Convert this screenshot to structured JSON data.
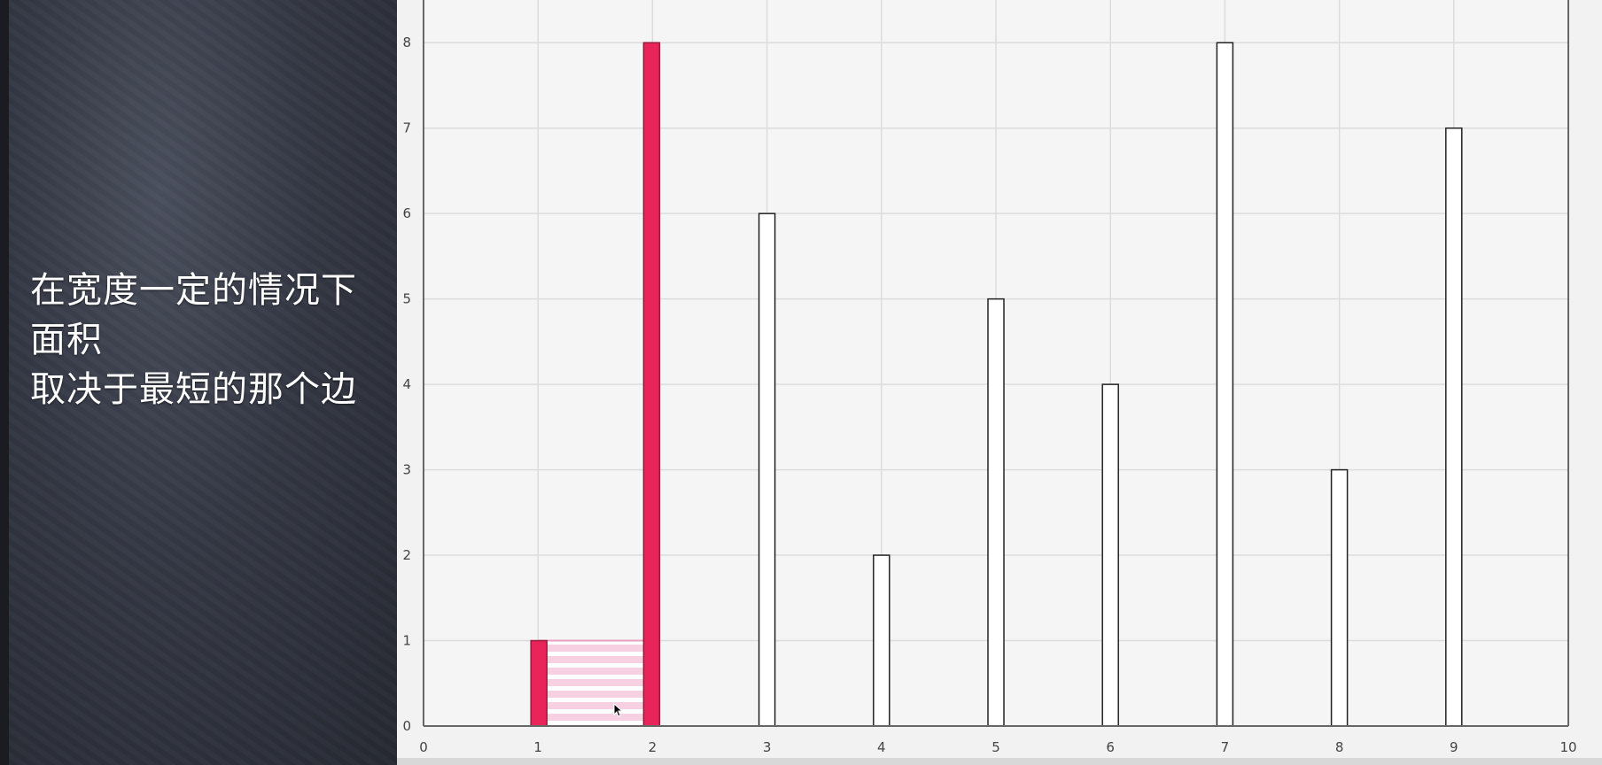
{
  "caption": {
    "lines": [
      "在宽度一定的情况下",
      "面积",
      "取决于最短的那个边"
    ]
  },
  "colors": {
    "highlight": "#e8245a",
    "bar_default": "#ffffff",
    "bar_stroke": "#222222",
    "area_fill": "#f7d0e2",
    "area_stripe": "#ffffff",
    "grid": "#dcdcdc",
    "axis": "#666666"
  },
  "chart_data": {
    "type": "bar",
    "x": [
      1,
      2,
      3,
      4,
      5,
      6,
      7,
      8,
      9
    ],
    "values": [
      1,
      8,
      6,
      2,
      5,
      4,
      8,
      3,
      7
    ],
    "highlighted": [
      1,
      2
    ],
    "area": {
      "x_from": 1,
      "x_to": 2,
      "height": 1
    },
    "xlim": [
      0,
      10
    ],
    "ylim": [
      0,
      8.5
    ],
    "xticks": [
      "0",
      "1",
      "2",
      "3",
      "4",
      "5",
      "6",
      "7",
      "8",
      "9",
      "10"
    ],
    "yticks": [
      "0",
      "1",
      "2",
      "3",
      "4",
      "5",
      "6",
      "7",
      "8"
    ],
    "grid": true
  }
}
